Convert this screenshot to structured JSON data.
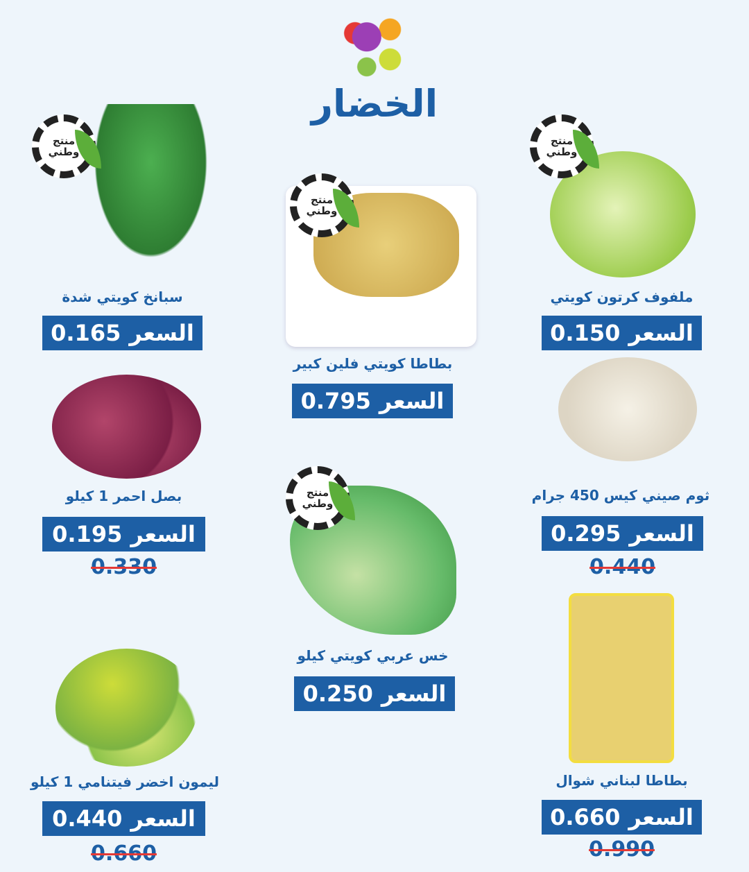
{
  "header": {
    "title": "الخضار",
    "logo": "fruit-circle-logo"
  },
  "badge": {
    "line1": "منتج",
    "line2": "وطني"
  },
  "price_label": "السعر",
  "colors": {
    "accent": "#1d5fa5",
    "background": "#eef5fb",
    "strike": "#e53935"
  },
  "products": [
    {
      "name": "ملفوف كرتون كويتي",
      "price": "0.150",
      "national": true
    },
    {
      "name": "بطاطا كويتي فلين كبير",
      "price": "0.795",
      "national": true
    },
    {
      "name": "سبانخ كويتي شدة",
      "price": "0.165",
      "national": true
    },
    {
      "name": "ثوم صيني كيس 450 جرام",
      "price": "0.295",
      "old_price": "0.440"
    },
    {
      "name": "بصل احمر 1 كيلو",
      "price": "0.195",
      "old_price": "0.330"
    },
    {
      "name": "خس عربي كويتي كيلو",
      "price": "0.250",
      "national": true
    },
    {
      "name": "بطاطا لبناني شوال",
      "price": "0.660",
      "old_price": "0.990"
    },
    {
      "name": "ليمون اخضر فيتنامي 1 كيلو",
      "price": "0.440",
      "old_price": "0.660"
    }
  ]
}
